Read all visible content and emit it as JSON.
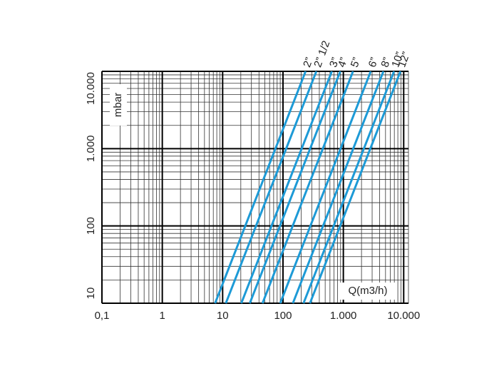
{
  "chart_data": {
    "type": "line",
    "log_x": true,
    "log_y": true,
    "grid": true,
    "minor_grid": true,
    "x_label": "Q(m3/h)",
    "y_label": "mbar",
    "xlim": [
      0.1,
      12000
    ],
    "ylim": [
      10,
      10000
    ],
    "xticks": [
      {
        "value": 0.1,
        "label": "0,1"
      },
      1,
      10,
      100,
      {
        "value": 1000,
        "label": "1.000"
      },
      {
        "value": 10000,
        "label": "10.000"
      }
    ],
    "yticks": [
      10,
      100,
      {
        "value": 1000,
        "label": "1.000"
      },
      {
        "value": 10000,
        "label": "10.000"
      }
    ],
    "series": [
      {
        "name": "2”",
        "color": "#1d9ad6",
        "x": [
          7.5,
          237
        ],
        "values": [
          10,
          10000
        ]
      },
      {
        "name": "2” 1/2",
        "color": "#1d9ad6",
        "x": [
          11.3,
          357
        ],
        "values": [
          10,
          10000
        ]
      },
      {
        "name": "3”",
        "color": "#1d9ad6",
        "x": [
          20.4,
          645
        ],
        "values": [
          10,
          10000
        ]
      },
      {
        "name": "4”",
        "color": "#1d9ad6",
        "x": [
          28.2,
          891
        ],
        "values": [
          10,
          10000
        ]
      },
      {
        "name": "5”",
        "color": "#1d9ad6",
        "x": [
          45.8,
          1447
        ],
        "values": [
          10,
          10000
        ]
      },
      {
        "name": "6”",
        "color": "#1d9ad6",
        "x": [
          90,
          2846
        ],
        "values": [
          10,
          10000
        ]
      },
      {
        "name": "8”",
        "color": "#1d9ad6",
        "x": [
          146,
          4614
        ],
        "values": [
          10,
          10000
        ]
      },
      {
        "name": "10”",
        "color": "#1d9ad6",
        "x": [
          219,
          6920
        ],
        "values": [
          10,
          10000
        ]
      },
      {
        "name": "12”",
        "color": "#1d9ad6",
        "x": [
          280,
          8850
        ],
        "values": [
          10,
          10000
        ]
      }
    ]
  }
}
